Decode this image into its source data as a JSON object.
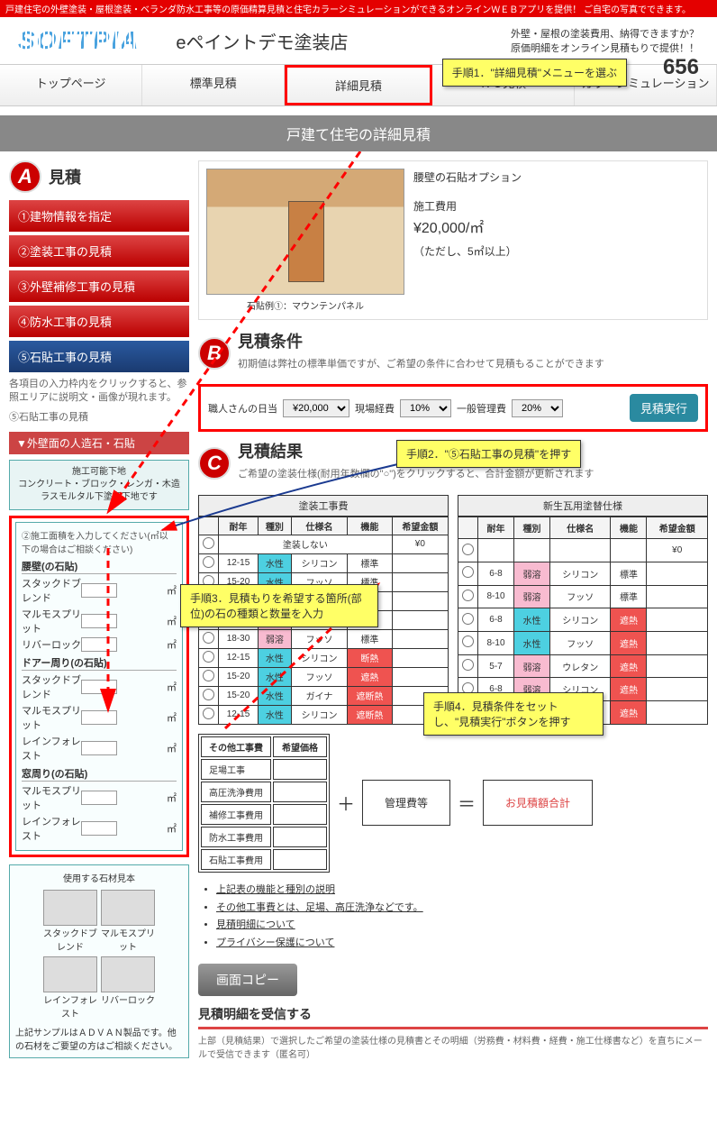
{
  "topbar": "戸建住宅の外壁塗装・屋根塗装・ベランダ防水工事等の原価精算見積と住宅カラーシミュレーションができるオンラインＷＥＢアプリを提供！ ご自宅の写真でできます。",
  "logo": "SOFTPIA",
  "site_title": "eペイントデモ塗装店",
  "header_line1": "外壁・屋根の塗装費用、納得できますか？",
  "header_line2": "原価明細をオンライン見積もりで提供！！",
  "phone_suffix": "656",
  "nav": [
    "トップページ",
    "標準見積",
    "詳細見積",
    "ＲＣ見積",
    "カラーシミュレーション"
  ],
  "page_title": "戸建て住宅の詳細見積",
  "callouts": {
    "c1": "手順1．\"詳細見積\"メニューを選ぶ",
    "c2": "手順2．\"⑤石貼工事の見積\"を押す",
    "c3": "手順3．見積もりを希望する箇所(部位)の石の種類と数量を入力",
    "c4": "手順4．見積条件をセットし、\"見積実行\"ボタンを押す"
  },
  "secA": {
    "letter": "A",
    "title": "見積"
  },
  "steps": [
    "①建物情報を指定",
    "②塗装工事の見積",
    "③外壁補修工事の見積",
    "④防水工事の見積",
    "⑤石貼工事の見積"
  ],
  "steps_note": "各項目の入力枠内をクリックすると、参照エリアに説明文・画像が現れます。",
  "step_echo": "⑤石貼工事の見積",
  "sub_head": "▼外壁面の人造石・石貼",
  "info_box_title": "施工可能下地",
  "info_box_text": "コンクリート・ブロック・レンガ・木造ラスモルタル下塗用下地です",
  "input_head": "②施工面積を入力してください(㎡以下の場合はご相談ください)",
  "groups": [
    {
      "label": "腰壁(の石貼)",
      "items": [
        "スタックドブレンド",
        "マルモスプリット",
        "リバーロック"
      ]
    },
    {
      "label": "ドアー周り(の石貼)",
      "items": [
        "スタックドブレンド",
        "マルモスプリット",
        "レインフォレスト"
      ]
    },
    {
      "label": "窓周り(の石貼)",
      "items": [
        "マルモスプリット",
        "レインフォレスト"
      ]
    }
  ],
  "unit": "㎡",
  "sample_title": "使用する石材見本",
  "sample_items": [
    "スタックドブレンド",
    "マルモスプリット",
    "レインフォレスト",
    "リバーロック"
  ],
  "sample_note": "上記サンプルはＡＤＶＡＮ製品です。他の石材をご要望の方はご相談ください。",
  "house_caption": "石貼例①：マウンテンパネル",
  "option": {
    "title": "腰壁の石貼オプション",
    "label": "施工費用",
    "price": "¥20,000/㎡",
    "note": "（ただし、5㎡以上）"
  },
  "secB": {
    "letter": "B",
    "title": "見積条件",
    "desc": "初期値は弊社の標準単価ですが、ご希望の条件に合わせて見積もることができます"
  },
  "cond": {
    "l1": "職人さんの日当",
    "v1": "¥20,000",
    "l2": "現場経費",
    "v2": "10%",
    "l3": "一般管理費",
    "v3": "20%",
    "btn": "見積実行"
  },
  "secC": {
    "letter": "C",
    "title": "見積結果",
    "desc": "ご希望の塗装仕様(耐用年数欄の\"○\")をクリックすると、合計金額が更新されます"
  },
  "table1_caption": "塗装工事費",
  "table2_caption": "新生瓦用塗替仕様",
  "cols": [
    "耐年",
    "種別",
    "仕様名",
    "機能",
    "希望金額"
  ],
  "t1_none": "塗装しない",
  "t1_none_price": "¥0",
  "t1": [
    [
      "12-15",
      "水性",
      "シリコン",
      "標準",
      ""
    ],
    [
      "15-20",
      "水性",
      "フッソ",
      "標準",
      ""
    ],
    [
      "10-12",
      "弱溶",
      "ウレタン",
      "標準",
      ""
    ],
    [
      "12-15",
      "弱溶",
      "シリコン",
      "標準",
      ""
    ],
    [
      "18-30",
      "弱溶",
      "フッソ",
      "標準",
      ""
    ],
    [
      "12-15",
      "水性",
      "シリコン",
      "断熱",
      ""
    ],
    [
      "15-20",
      "水性",
      "フッソ",
      "遮熱",
      ""
    ],
    [
      "15-20",
      "水性",
      "ガイナ",
      "遮断熱",
      ""
    ],
    [
      "12-15",
      "水性",
      "シリコン",
      "遮断熱",
      ""
    ]
  ],
  "t2": [
    [
      "",
      "",
      "",
      "",
      "¥0"
    ],
    [
      "6-8",
      "弱溶",
      "シリコン",
      "標準",
      ""
    ],
    [
      "8-10",
      "弱溶",
      "フッソ",
      "標準",
      ""
    ],
    [
      "6-8",
      "水性",
      "シリコン",
      "遮熱",
      ""
    ],
    [
      "8-10",
      "水性",
      "フッソ",
      "遮熱",
      ""
    ],
    [
      "5-7",
      "弱溶",
      "ウレタン",
      "遮熱",
      ""
    ],
    [
      "6-8",
      "弱溶",
      "シリコン",
      "遮熱",
      ""
    ],
    [
      "8-10",
      "弱溶",
      "フッソ",
      "遮熱",
      ""
    ]
  ],
  "other_cols": [
    "その他工事費",
    "希望価格"
  ],
  "other_rows": [
    "足場工事",
    "高圧洗浄費用",
    "補修工事費用",
    "防水工事費用",
    "石貼工事費用"
  ],
  "mgmt_label": "管理費等",
  "total_label": "お見積額合計",
  "links": [
    "上記表の機能と種別の説明",
    "その他工事費とは、足場、高圧洗浄などです。",
    "見積明細について",
    "プライバシー保護について"
  ],
  "copy_btn": "画面コピー",
  "receive_title": "見積明細を受信する",
  "receive_desc": "上部（見積結果）で選択したご希望の塗装仕様の見積書とその明細（労務費・材料費・経費・施工仕様書など）を直ちにメールで受信できます（匿名可）"
}
